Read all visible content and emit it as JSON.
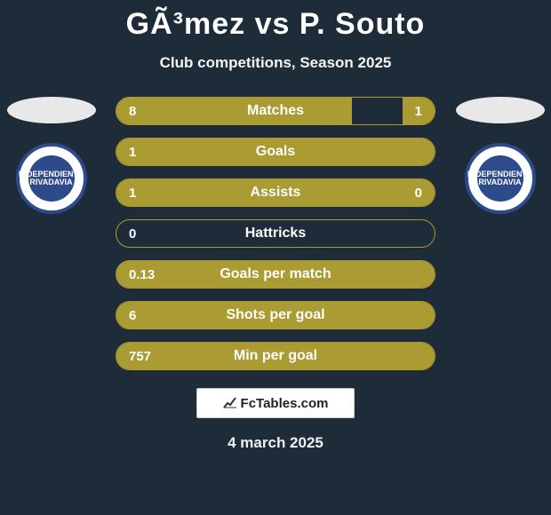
{
  "title": "GÃ³mez vs P. Souto",
  "subtitle": "Club competitions, Season 2025",
  "date": "4 march 2025",
  "footer_brand": "FcTables.com",
  "colors": {
    "bg": "#1e2b38",
    "bar_fill": "#ab9b33",
    "bar_border": "#a9992f",
    "badge_ring": "#2d4a8a"
  },
  "badge_text": "INDEPENDIENTE\nRIVADAVIA",
  "bars": [
    {
      "label": "Matches",
      "left": "8",
      "right": "1",
      "left_pct": 74,
      "right_pct": 10
    },
    {
      "label": "Goals",
      "left": "1",
      "right": "",
      "left_pct": 100,
      "right_pct": 0
    },
    {
      "label": "Assists",
      "left": "1",
      "right": "0",
      "left_pct": 100,
      "right_pct": 0
    },
    {
      "label": "Hattricks",
      "left": "0",
      "right": "",
      "left_pct": 0,
      "right_pct": 0
    },
    {
      "label": "Goals per match",
      "left": "0.13",
      "right": "",
      "left_pct": 100,
      "right_pct": 0
    },
    {
      "label": "Shots per goal",
      "left": "6",
      "right": "",
      "left_pct": 100,
      "right_pct": 0
    },
    {
      "label": "Min per goal",
      "left": "757",
      "right": "",
      "left_pct": 100,
      "right_pct": 0
    }
  ]
}
